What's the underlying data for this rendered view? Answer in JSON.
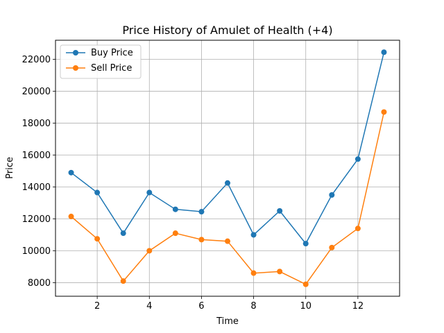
{
  "chart_data": {
    "type": "line",
    "title": "Price History of Amulet of Health (+4)",
    "xlabel": "Time",
    "ylabel": "Price",
    "x": [
      1,
      2,
      3,
      4,
      5,
      6,
      7,
      8,
      9,
      10,
      11,
      12,
      13
    ],
    "xlim": [
      0.4,
      13.6
    ],
    "ylim": [
      7150,
      23200
    ],
    "xticks": [
      2,
      4,
      6,
      8,
      10,
      12
    ],
    "yticks": [
      8000,
      10000,
      12000,
      14000,
      16000,
      18000,
      20000,
      22000
    ],
    "grid": true,
    "legend_position": "upper-left",
    "series": [
      {
        "name": "Buy Price",
        "color": "#1f77b4",
        "values": [
          14900,
          13650,
          11100,
          13650,
          12600,
          12450,
          14250,
          11000,
          12500,
          10450,
          13500,
          15750,
          22450
        ]
      },
      {
        "name": "Sell Price",
        "color": "#ff7f0e",
        "values": [
          12150,
          10750,
          8100,
          10000,
          11100,
          10700,
          10600,
          8600,
          8700,
          7900,
          10200,
          11400,
          18700
        ]
      }
    ]
  }
}
